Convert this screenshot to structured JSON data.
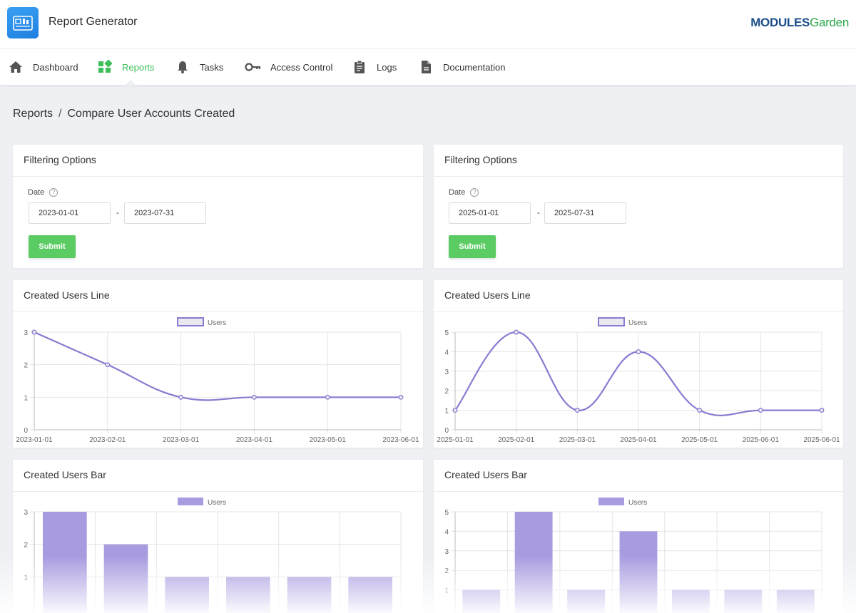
{
  "header": {
    "app_title": "Report Generator",
    "brand_part1": "MODULES",
    "brand_part2": "Garden"
  },
  "nav": {
    "items": [
      {
        "label": "Dashboard",
        "icon": "home-icon"
      },
      {
        "label": "Reports",
        "icon": "grid-icon",
        "active": true
      },
      {
        "label": "Tasks",
        "icon": "bell-icon"
      },
      {
        "label": "Access Control",
        "icon": "key-icon"
      },
      {
        "label": "Logs",
        "icon": "clipboard-icon"
      },
      {
        "label": "Documentation",
        "icon": "document-icon"
      }
    ]
  },
  "breadcrumb": {
    "parent": "Reports",
    "separator": "/",
    "current": "Compare User Accounts Created"
  },
  "left": {
    "filter": {
      "title": "Filtering Options",
      "date_label": "Date",
      "date_from": "2023-01-01",
      "date_to": "2023-07-31",
      "dash": "-",
      "submit_label": "Submit"
    },
    "line_title": "Created Users Line",
    "bar_title": "Created Users Bar"
  },
  "right": {
    "filter": {
      "title": "Filtering Options",
      "date_label": "Date",
      "date_from": "2025-01-01",
      "date_to": "2025-07-31",
      "dash": "-",
      "submit_label": "Submit"
    },
    "line_title": "Created Users Line",
    "bar_title": "Created Users Bar"
  },
  "colors": {
    "accent_green": "#5bcb63",
    "series_purple": "#8b7ad1",
    "bar_fill": "#a99be0"
  },
  "chart_data": [
    {
      "type": "line",
      "title": "Created Users Line",
      "legend": "Users",
      "x": [
        "2023-01-01",
        "2023-02-01",
        "2023-03-01",
        "2023-04-01",
        "2023-05-01",
        "2023-06-01"
      ],
      "series": [
        {
          "name": "Users",
          "values": [
            3,
            2,
            1,
            1,
            1,
            1
          ]
        }
      ],
      "ylim": [
        0,
        3
      ],
      "yticks": [
        0,
        1,
        2,
        3
      ]
    },
    {
      "type": "line",
      "title": "Created Users Line",
      "legend": "Users",
      "x": [
        "2025-01-01",
        "2025-02-01",
        "2025-03-01",
        "2025-04-01",
        "2025-05-01",
        "2025-06-01",
        "2025-06-01"
      ],
      "series": [
        {
          "name": "Users",
          "values": [
            1,
            5,
            1,
            4,
            1,
            1,
            1
          ]
        }
      ],
      "ylim": [
        0,
        5
      ],
      "yticks": [
        0,
        1,
        2,
        3,
        4,
        5
      ]
    },
    {
      "type": "bar",
      "title": "Created Users Bar",
      "legend": "Users",
      "categories": [
        "",
        "",
        "",
        "",
        "",
        ""
      ],
      "series": [
        {
          "name": "Users",
          "values": [
            3,
            2,
            1,
            1,
            1,
            1
          ]
        }
      ],
      "ylim": [
        0,
        3
      ],
      "yticks": [
        1,
        2,
        3
      ]
    },
    {
      "type": "bar",
      "title": "Created Users Bar",
      "legend": "Users",
      "categories": [
        "",
        "",
        "",
        "",
        "",
        "",
        ""
      ],
      "series": [
        {
          "name": "Users",
          "values": [
            1,
            5,
            1,
            4,
            1,
            1,
            1
          ]
        }
      ],
      "ylim": [
        0,
        5
      ],
      "yticks": [
        1,
        2,
        3,
        4,
        5
      ]
    }
  ]
}
